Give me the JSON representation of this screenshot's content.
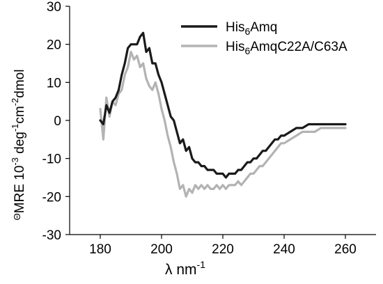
{
  "chart_data": {
    "type": "line",
    "xlabel": "λ nm",
    "xlabel_sup": "-1",
    "ylabel_parts": {
      "theta": "Θ",
      "mre": "MRE 10",
      "sup1": "-3",
      "deg": " deg",
      "sup2": "-1",
      "cm": "cm",
      "sup3": "-2",
      "dmol": "dmol"
    },
    "xlim": [
      170,
      270
    ],
    "ylim": [
      -30,
      30
    ],
    "xticks": [
      180,
      200,
      220,
      240,
      260
    ],
    "yticks": [
      -30,
      -20,
      -10,
      0,
      10,
      20,
      30
    ],
    "grid": false,
    "legend_position": "top-right",
    "series": [
      {
        "name": "His6Amq",
        "legend": {
          "main": "His",
          "sub": "6",
          "rest": "Amq"
        },
        "color": "#1a1a1a",
        "points": [
          [
            180,
            0
          ],
          [
            181,
            -1
          ],
          [
            182,
            4
          ],
          [
            183,
            2
          ],
          [
            184,
            5
          ],
          [
            185,
            6
          ],
          [
            186,
            8
          ],
          [
            187,
            12
          ],
          [
            188,
            15
          ],
          [
            189,
            19
          ],
          [
            190,
            20
          ],
          [
            191,
            20
          ],
          [
            192,
            20
          ],
          [
            193,
            22
          ],
          [
            194,
            23
          ],
          [
            195,
            18
          ],
          [
            196,
            19
          ],
          [
            197,
            15
          ],
          [
            198,
            15
          ],
          [
            199,
            12
          ],
          [
            200,
            10
          ],
          [
            201,
            7
          ],
          [
            202,
            4
          ],
          [
            203,
            1
          ],
          [
            204,
            0
          ],
          [
            205,
            -3
          ],
          [
            206,
            -6
          ],
          [
            207,
            -5
          ],
          [
            208,
            -8
          ],
          [
            209,
            -7
          ],
          [
            210,
            -10
          ],
          [
            211,
            -11
          ],
          [
            212,
            -11
          ],
          [
            213,
            -12
          ],
          [
            214,
            -12
          ],
          [
            215,
            -13
          ],
          [
            216,
            -13
          ],
          [
            217,
            -13
          ],
          [
            218,
            -14
          ],
          [
            219,
            -14
          ],
          [
            220,
            -14
          ],
          [
            221,
            -15
          ],
          [
            222,
            -14
          ],
          [
            223,
            -14
          ],
          [
            224,
            -14
          ],
          [
            225,
            -13
          ],
          [
            226,
            -13
          ],
          [
            227,
            -12
          ],
          [
            228,
            -11
          ],
          [
            229,
            -11
          ],
          [
            230,
            -10
          ],
          [
            231,
            -10
          ],
          [
            232,
            -9
          ],
          [
            233,
            -8
          ],
          [
            234,
            -8
          ],
          [
            235,
            -7
          ],
          [
            236,
            -6
          ],
          [
            237,
            -5
          ],
          [
            238,
            -5
          ],
          [
            239,
            -4
          ],
          [
            240,
            -4
          ],
          [
            242,
            -3
          ],
          [
            244,
            -2
          ],
          [
            246,
            -2
          ],
          [
            248,
            -1
          ],
          [
            250,
            -1
          ],
          [
            252,
            -1
          ],
          [
            254,
            -1
          ],
          [
            256,
            -1
          ],
          [
            258,
            -1
          ],
          [
            260,
            -1
          ]
        ]
      },
      {
        "name": "His6AmqC22A/C63A",
        "legend": {
          "main": "His",
          "sub": "6",
          "rest": "AmqC22A/C63A"
        },
        "color": "#b3b3b3",
        "points": [
          [
            180,
            3
          ],
          [
            181,
            -5
          ],
          [
            182,
            6
          ],
          [
            183,
            1
          ],
          [
            184,
            5
          ],
          [
            185,
            4
          ],
          [
            186,
            7
          ],
          [
            187,
            8
          ],
          [
            188,
            12
          ],
          [
            189,
            14
          ],
          [
            190,
            18
          ],
          [
            191,
            16
          ],
          [
            192,
            17
          ],
          [
            193,
            14
          ],
          [
            194,
            15
          ],
          [
            195,
            11
          ],
          [
            196,
            9
          ],
          [
            197,
            8
          ],
          [
            198,
            10
          ],
          [
            199,
            7
          ],
          [
            200,
            3
          ],
          [
            201,
            0
          ],
          [
            202,
            -4
          ],
          [
            203,
            -7
          ],
          [
            204,
            -11
          ],
          [
            205,
            -14
          ],
          [
            206,
            -18
          ],
          [
            207,
            -17
          ],
          [
            208,
            -20
          ],
          [
            209,
            -18
          ],
          [
            210,
            -19
          ],
          [
            211,
            -17
          ],
          [
            212,
            -18
          ],
          [
            213,
            -17
          ],
          [
            214,
            -18
          ],
          [
            215,
            -17
          ],
          [
            216,
            -18
          ],
          [
            217,
            -18
          ],
          [
            218,
            -17
          ],
          [
            219,
            -18
          ],
          [
            220,
            -17
          ],
          [
            221,
            -18
          ],
          [
            222,
            -17
          ],
          [
            223,
            -17
          ],
          [
            224,
            -17
          ],
          [
            225,
            -16
          ],
          [
            226,
            -17
          ],
          [
            227,
            -16
          ],
          [
            228,
            -15
          ],
          [
            229,
            -14
          ],
          [
            230,
            -14
          ],
          [
            231,
            -13
          ],
          [
            232,
            -12
          ],
          [
            233,
            -12
          ],
          [
            234,
            -11
          ],
          [
            235,
            -10
          ],
          [
            236,
            -9
          ],
          [
            237,
            -8
          ],
          [
            238,
            -7
          ],
          [
            239,
            -6
          ],
          [
            240,
            -6
          ],
          [
            242,
            -5
          ],
          [
            244,
            -4
          ],
          [
            246,
            -3
          ],
          [
            248,
            -3
          ],
          [
            250,
            -3
          ],
          [
            252,
            -2
          ],
          [
            254,
            -2
          ],
          [
            256,
            -2
          ],
          [
            258,
            -2
          ],
          [
            260,
            -2
          ]
        ]
      }
    ]
  }
}
